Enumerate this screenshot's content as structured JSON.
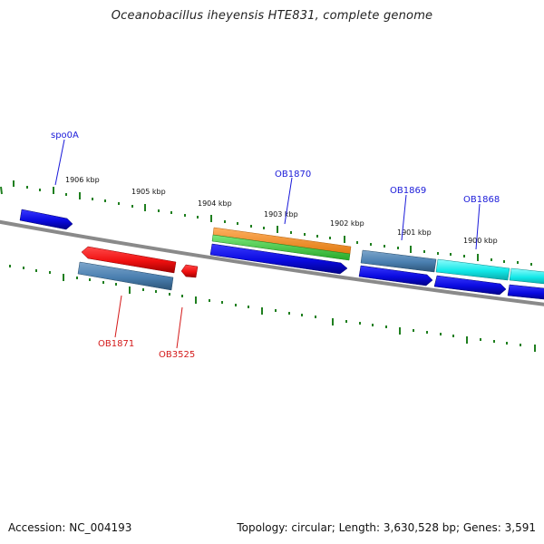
{
  "title": "Oceanobacillus iheyensis HTE831, complete genome",
  "footer": {
    "accession": "Accession: NC_004193",
    "summary": "Topology: circular; Length: 3,630,528 bp; Genes: 3,591"
  },
  "ticks": {
    "labels": [
      "1906 kbp",
      "1905 kbp",
      "1904 kbp",
      "1903 kbp",
      "1902 kbp",
      "1901 kbp",
      "1900 kbp"
    ]
  },
  "genes": {
    "top": [
      "spo0A",
      "OB1870",
      "OB1869",
      "OB1868"
    ],
    "bottom": [
      "OB1871",
      "OB3525"
    ]
  },
  "colors": {
    "forward_gene": "#1010e0",
    "reverse_gene": "#ef1010",
    "feature_steel": "#4a7fb0",
    "feature_orange": "#f28a1e",
    "feature_green": "#3cc93c",
    "feature_cyan": "#12e8e8",
    "backbone": "#888888",
    "tick": "#1f7f1f"
  }
}
